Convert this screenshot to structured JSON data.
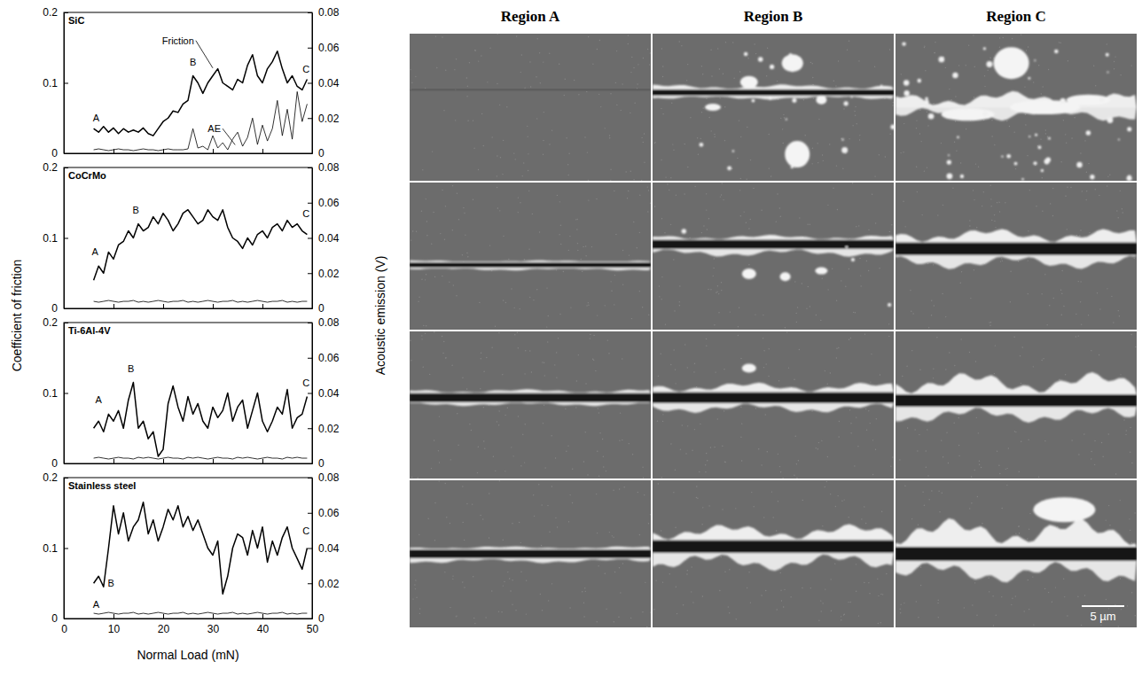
{
  "figure": {
    "xlabel": "Normal Load (mN)",
    "ylabel": "Coefficient of friction",
    "y2label": "Acoustic emission (V)"
  },
  "chart_data": [
    {
      "type": "line",
      "title": "SiC",
      "x": [
        6,
        7,
        8,
        9,
        10,
        11,
        12,
        13,
        14,
        15,
        16,
        17,
        18,
        19,
        20,
        21,
        22,
        23,
        24,
        25,
        26,
        27,
        28,
        29,
        30,
        31,
        32,
        33,
        34,
        35,
        36,
        37,
        38,
        39,
        40,
        41,
        42,
        43,
        44,
        45,
        46,
        47,
        48,
        49
      ],
      "xlim": [
        0,
        50
      ],
      "xticks": [
        0,
        10,
        20,
        30,
        40,
        50
      ],
      "ylim": [
        0,
        0.2
      ],
      "yticks": [
        0,
        0.1,
        0.2
      ],
      "y2lim": [
        0,
        0.08
      ],
      "y2ticks": [
        0,
        0.02,
        0.04,
        0.06,
        0.08
      ],
      "tick_labels": "y",
      "series": [
        {
          "color": "#000000",
          "values": [
            0.035,
            0.03,
            0.038,
            0.03,
            0.036,
            0.028,
            0.035,
            0.03,
            0.033,
            0.03,
            0.036,
            0.028,
            0.025,
            0.035,
            0.045,
            0.05,
            0.06,
            0.058,
            0.07,
            0.075,
            0.11,
            0.1,
            0.085,
            0.1,
            0.11,
            0.12,
            0.1,
            0.095,
            0.09,
            0.105,
            0.1,
            0.125,
            0.14,
            0.11,
            0.1,
            0.12,
            0.13,
            0.145,
            0.12,
            0.1,
            0.11,
            0.095,
            0.09,
            0.105
          ]
        },
        {
          "color": "#000000",
          "axis": "y2",
          "values": [
            0.002,
            0.0025,
            0.002,
            0.0015,
            0.002,
            0.0025,
            0.002,
            0.002,
            0.0015,
            0.002,
            0.0025,
            0.002,
            0.002,
            0.0015,
            0.002,
            0.0025,
            0.002,
            0.002,
            0.002,
            0.0025,
            0.014,
            0.003,
            0.004,
            0.002,
            0.01,
            0.003,
            0.006,
            0.002,
            0.008,
            0.012,
            0.004,
            0.009,
            0.02,
            0.005,
            0.016,
            0.007,
            0.014,
            0.03,
            0.01,
            0.025,
            0.008,
            0.035,
            0.018,
            0.028
          ]
        }
      ],
      "annotations": [
        {
          "text": "A",
          "x": 6.5,
          "y": 0.045
        },
        {
          "text": "B",
          "x": 26,
          "y": 0.125
        },
        {
          "text": "C",
          "x": 48.8,
          "y": 0.115
        },
        {
          "text": "Friction",
          "x": 23,
          "y": 0.155,
          "arrow_x": 30,
          "arrow_y": 0.121
        },
        {
          "text": "AE",
          "x": 30.3,
          "y": 0.03,
          "arrow_x": 34.5,
          "arrow_y": 0.012
        }
      ]
    },
    {
      "type": "line",
      "title": "CoCrMo",
      "x": [
        6,
        7,
        8,
        9,
        10,
        11,
        12,
        13,
        14,
        15,
        16,
        17,
        18,
        19,
        20,
        21,
        22,
        23,
        24,
        25,
        26,
        27,
        28,
        29,
        30,
        31,
        32,
        33,
        34,
        35,
        36,
        37,
        38,
        39,
        40,
        41,
        42,
        43,
        44,
        45,
        46,
        47,
        48,
        49
      ],
      "xlim": [
        0,
        50
      ],
      "xticks": [
        0,
        10,
        20,
        30,
        40,
        50
      ],
      "ylim": [
        0,
        0.2
      ],
      "yticks": [
        0,
        0.1,
        0.2
      ],
      "y2lim": [
        0,
        0.08
      ],
      "y2ticks": [
        0,
        0.02,
        0.04,
        0.06,
        0.08
      ],
      "tick_labels": "y",
      "series": [
        {
          "color": "#000000",
          "values": [
            0.04,
            0.06,
            0.05,
            0.08,
            0.07,
            0.09,
            0.095,
            0.11,
            0.1,
            0.12,
            0.11,
            0.115,
            0.13,
            0.12,
            0.135,
            0.125,
            0.11,
            0.12,
            0.135,
            0.14,
            0.13,
            0.12,
            0.125,
            0.14,
            0.13,
            0.125,
            0.14,
            0.115,
            0.1,
            0.095,
            0.085,
            0.1,
            0.09,
            0.105,
            0.11,
            0.1,
            0.115,
            0.12,
            0.11,
            0.125,
            0.115,
            0.12,
            0.11,
            0.105
          ]
        },
        {
          "color": "#000000",
          "axis": "y2",
          "values": [
            0.004,
            0.0035,
            0.004,
            0.0045,
            0.004,
            0.0035,
            0.004,
            0.004,
            0.0045,
            0.0035,
            0.004,
            0.0035,
            0.004,
            0.0045,
            0.004,
            0.0035,
            0.004,
            0.004,
            0.0045,
            0.0035,
            0.004,
            0.0035,
            0.004,
            0.0045,
            0.004,
            0.0035,
            0.004,
            0.004,
            0.0045,
            0.0035,
            0.004,
            0.0035,
            0.004,
            0.0045,
            0.004,
            0.0035,
            0.004,
            0.004,
            0.0045,
            0.0035,
            0.004,
            0.0035,
            0.004,
            0.004
          ]
        }
      ],
      "annotations": [
        {
          "text": "A",
          "x": 6.3,
          "y": 0.075
        },
        {
          "text": "B",
          "x": 14.5,
          "y": 0.135
        },
        {
          "text": "C",
          "x": 48.8,
          "y": 0.13
        }
      ]
    },
    {
      "type": "line",
      "title": "Ti-6Al-4V",
      "x": [
        6,
        7,
        8,
        9,
        10,
        11,
        12,
        13,
        14,
        15,
        16,
        17,
        18,
        19,
        20,
        21,
        22,
        23,
        24,
        25,
        26,
        27,
        28,
        29,
        30,
        31,
        32,
        33,
        34,
        35,
        36,
        37,
        38,
        39,
        40,
        41,
        42,
        43,
        44,
        45,
        46,
        47,
        48,
        49
      ],
      "xlim": [
        0,
        50
      ],
      "xticks": [
        0,
        10,
        20,
        30,
        40,
        50
      ],
      "ylim": [
        0,
        0.2
      ],
      "yticks": [
        0,
        0.1,
        0.2
      ],
      "y2lim": [
        0,
        0.08
      ],
      "y2ticks": [
        0,
        0.02,
        0.04,
        0.06,
        0.08
      ],
      "tick_labels": "y",
      "series": [
        {
          "color": "#000000",
          "values": [
            0.05,
            0.06,
            0.045,
            0.07,
            0.06,
            0.075,
            0.05,
            0.09,
            0.115,
            0.05,
            0.06,
            0.035,
            0.045,
            0.01,
            0.02,
            0.085,
            0.11,
            0.08,
            0.06,
            0.095,
            0.07,
            0.085,
            0.06,
            0.05,
            0.08,
            0.065,
            0.075,
            0.1,
            0.06,
            0.08,
            0.09,
            0.05,
            0.075,
            0.1,
            0.06,
            0.045,
            0.06,
            0.08,
            0.07,
            0.105,
            0.05,
            0.065,
            0.07,
            0.095
          ]
        },
        {
          "color": "#000000",
          "axis": "y2",
          "values": [
            0.003,
            0.0035,
            0.003,
            0.0025,
            0.003,
            0.0035,
            0.003,
            0.003,
            0.0025,
            0.0035,
            0.003,
            0.0035,
            0.003,
            0.0025,
            0.003,
            0.0035,
            0.003,
            0.003,
            0.0025,
            0.0035,
            0.003,
            0.0035,
            0.003,
            0.0025,
            0.003,
            0.0035,
            0.003,
            0.003,
            0.0025,
            0.0035,
            0.003,
            0.0035,
            0.003,
            0.0025,
            0.003,
            0.0035,
            0.003,
            0.003,
            0.0025,
            0.0035,
            0.003,
            0.0035,
            0.003,
            0.003
          ]
        }
      ],
      "annotations": [
        {
          "text": "A",
          "x": 7,
          "y": 0.085
        },
        {
          "text": "B",
          "x": 13.5,
          "y": 0.13
        },
        {
          "text": "C",
          "x": 48.8,
          "y": 0.11
        }
      ]
    },
    {
      "type": "line",
      "title": "Stainless steel",
      "x": [
        6,
        7,
        8,
        9,
        10,
        11,
        12,
        13,
        14,
        15,
        16,
        17,
        18,
        19,
        20,
        21,
        22,
        23,
        24,
        25,
        26,
        27,
        28,
        29,
        30,
        31,
        32,
        33,
        34,
        35,
        36,
        37,
        38,
        39,
        40,
        41,
        42,
        43,
        44,
        45,
        46,
        47,
        48,
        49
      ],
      "xlim": [
        0,
        50
      ],
      "xticks": [
        0,
        10,
        20,
        30,
        40,
        50
      ],
      "ylim": [
        0,
        0.2
      ],
      "yticks": [
        0,
        0.1,
        0.2
      ],
      "y2lim": [
        0,
        0.08
      ],
      "y2ticks": [
        0,
        0.02,
        0.04,
        0.06,
        0.08
      ],
      "tick_labels": true,
      "series": [
        {
          "color": "#000000",
          "values": [
            0.05,
            0.06,
            0.045,
            0.1,
            0.16,
            0.12,
            0.15,
            0.11,
            0.13,
            0.14,
            0.165,
            0.12,
            0.14,
            0.11,
            0.13,
            0.155,
            0.14,
            0.16,
            0.13,
            0.145,
            0.125,
            0.14,
            0.12,
            0.1,
            0.09,
            0.11,
            0.035,
            0.06,
            0.1,
            0.12,
            0.115,
            0.09,
            0.125,
            0.1,
            0.13,
            0.08,
            0.11,
            0.09,
            0.115,
            0.13,
            0.1,
            0.085,
            0.07,
            0.1
          ]
        },
        {
          "color": "#000000",
          "axis": "y2",
          "values": [
            0.003,
            0.0025,
            0.003,
            0.0035,
            0.003,
            0.0025,
            0.003,
            0.003,
            0.0035,
            0.0025,
            0.003,
            0.0025,
            0.003,
            0.0035,
            0.003,
            0.0025,
            0.003,
            0.003,
            0.0035,
            0.0025,
            0.003,
            0.0025,
            0.003,
            0.0035,
            0.003,
            0.0025,
            0.003,
            0.003,
            0.0035,
            0.0025,
            0.003,
            0.0025,
            0.003,
            0.0035,
            0.003,
            0.0025,
            0.003,
            0.003,
            0.0035,
            0.0025,
            0.003,
            0.0025,
            0.003,
            0.003
          ]
        }
      ],
      "annotations": [
        {
          "text": "A",
          "x": 6.5,
          "y": 0.015
        },
        {
          "text": "B",
          "x": 9.5,
          "y": 0.045
        },
        {
          "text": "C",
          "x": 48.8,
          "y": 0.12
        }
      ]
    }
  ],
  "images": {
    "columns": [
      "Region A",
      "Region B",
      "Region C"
    ],
    "scale_bar": "5 µm"
  }
}
